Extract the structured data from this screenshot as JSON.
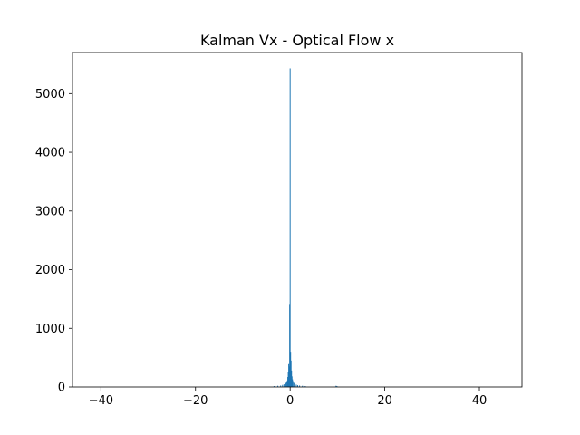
{
  "chart_data": {
    "type": "bar",
    "title": "Kalman Vx - Optical Flow x",
    "xlabel": "",
    "ylabel": "",
    "xlim": [
      -46,
      49
    ],
    "ylim": [
      0,
      5700
    ],
    "grid": false,
    "legend": "none",
    "bar_color": "#1f77b4",
    "x_ticks": [
      -40,
      -20,
      0,
      20,
      40
    ],
    "x_tick_labels": [
      "−40",
      "−20",
      "0",
      "20",
      "40"
    ],
    "y_ticks": [
      0,
      1000,
      2000,
      3000,
      4000,
      5000
    ],
    "y_tick_labels": [
      "0",
      "1000",
      "2000",
      "3000",
      "4000",
      "5000"
    ],
    "bin_width": 0.1,
    "bins": [
      {
        "x": -3.4,
        "count": 15
      },
      {
        "x": -2.6,
        "count": 20
      },
      {
        "x": -2.0,
        "count": 25
      },
      {
        "x": -1.6,
        "count": 35
      },
      {
        "x": -1.3,
        "count": 45
      },
      {
        "x": -1.0,
        "count": 60
      },
      {
        "x": -0.8,
        "count": 80
      },
      {
        "x": -0.6,
        "count": 110
      },
      {
        "x": -0.5,
        "count": 170
      },
      {
        "x": -0.4,
        "count": 260
      },
      {
        "x": -0.3,
        "count": 390
      },
      {
        "x": -0.2,
        "count": 350
      },
      {
        "x": -0.1,
        "count": 1400
      },
      {
        "x": 0.0,
        "count": 5430
      },
      {
        "x": 0.1,
        "count": 600
      },
      {
        "x": 0.2,
        "count": 450
      },
      {
        "x": 0.3,
        "count": 280
      },
      {
        "x": 0.4,
        "count": 180
      },
      {
        "x": 0.5,
        "count": 130
      },
      {
        "x": 0.6,
        "count": 100
      },
      {
        "x": 0.8,
        "count": 70
      },
      {
        "x": 1.0,
        "count": 55
      },
      {
        "x": 1.3,
        "count": 40
      },
      {
        "x": 1.6,
        "count": 30
      },
      {
        "x": 2.0,
        "count": 25
      },
      {
        "x": 2.6,
        "count": 20
      },
      {
        "x": 3.2,
        "count": 15
      },
      {
        "x": 9.7,
        "count": 20
      },
      {
        "x": 9.9,
        "count": 15
      }
    ]
  }
}
